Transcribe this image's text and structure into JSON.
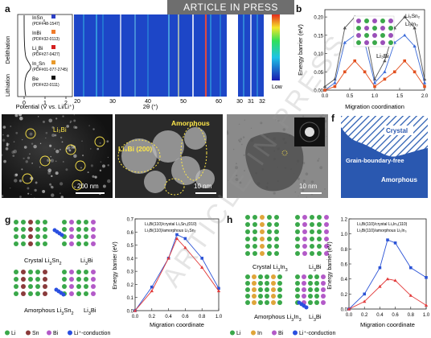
{
  "banner": "ARTICLE IN PRESS",
  "watermark": "ARTICLE IN PRESS",
  "panels": {
    "a": "a",
    "b": "b",
    "c": "c",
    "d": "d",
    "e": "e",
    "f": "f",
    "g": "g",
    "h": "h"
  },
  "panel_a": {
    "side_top": "Delithiation",
    "side_bottom": "Lithiation",
    "refs": [
      {
        "name": "InSn",
        "sub": "4",
        "pdf": "(PDF#48-1547)",
        "color": "#2c3fc4"
      },
      {
        "name": "InBi",
        "sub": "",
        "pdf": "(PDF#32-0113)",
        "color": "#f07b2a"
      },
      {
        "name": "Li",
        "sub": "3",
        "name2": "Bi",
        "pdf": "(PDF#27-0427)",
        "color": "#d42020"
      },
      {
        "name": "In",
        "sub": "3",
        "name2": "Sn",
        "pdf": "(PDF#01-077-2745)",
        "color": "#e89a2b"
      },
      {
        "name": "Be",
        "sub": "",
        "pdf": "(PDF#22-0111)",
        "color": "#111111"
      }
    ],
    "xlabel": "Potential (V vs. Li/Li⁺)",
    "xticks": [
      "0",
      "1",
      "2"
    ],
    "theta_label": "2θ (°)",
    "theta_ticks": [
      "20",
      "30",
      "40",
      "50",
      "60"
    ],
    "theta_ticks2": [
      "30",
      "31",
      "32"
    ],
    "colorbar_low": "Low"
  },
  "panel_b": {
    "ylabel": "Energy barrier (eV)",
    "xlabel": "Migration coordination",
    "legend1": "Li₃Sn₂",
    "legend2": "Li₃In₃",
    "inset_label": "Li₃Bi",
    "chart_data": {
      "type": "line",
      "x": [
        0,
        0.2,
        0.4,
        0.6,
        0.8,
        1.0,
        1.2,
        1.4,
        1.6,
        1.8,
        2.0
      ],
      "series": [
        {
          "name": "Li₃Sn₂",
          "values": [
            0.01,
            0.03,
            0.17,
            0.2,
            0.17,
            0.03,
            0.08,
            0.17,
            0.2,
            0.17,
            0.03
          ]
        },
        {
          "name": "Li₃In₃",
          "values": [
            0.0,
            0.02,
            0.13,
            0.15,
            0.13,
            0.02,
            0.05,
            0.13,
            0.15,
            0.12,
            0.02
          ]
        },
        {
          "name": "",
          "values": [
            0.0,
            0.01,
            0.05,
            0.08,
            0.05,
            0.01,
            0.03,
            0.05,
            0.08,
            0.05,
            0.01
          ]
        }
      ],
      "ylim": [
        0,
        0.22
      ],
      "yticks": [
        "0.00",
        "0.05",
        "0.10",
        "0.15",
        "0.20"
      ],
      "xticks": [
        "0.0",
        "0.5",
        "1.0",
        "1.5",
        "2.0"
      ]
    }
  },
  "panel_c": {
    "label": "Li₃Bi",
    "scale": "200 nm"
  },
  "panel_d": {
    "label1": "Amorphous",
    "label2": "Li₃Bi (200)",
    "scale": "10 nm"
  },
  "panel_e": {
    "scale": "10 nm"
  },
  "panel_f": {
    "crystal": "Crystal",
    "gbf": "Grain-boundary-free",
    "amorphous": "Amorphous"
  },
  "panel_g": {
    "crystal_label": "Crystal Li₃Sn₂",
    "li3bi1": "Li₃Bi",
    "amorph_label": "Amorphous Li₃Sn₂",
    "li3bi2": "Li₃Bi",
    "legend": [
      "Li",
      "Sn",
      "Bi",
      "Li⁺-conduction"
    ],
    "ylabel": "Energy barrier (eV)",
    "xlabel": "Migration coordinate",
    "legend1": "Li₃Bi(110)/crystal Li₃Sn₂(010)",
    "legend2": "Li₃Bi(110)/amorphous Li₃Sn₂",
    "chart_data": {
      "type": "line",
      "x": [
        0,
        0.2,
        0.4,
        0.5,
        0.6,
        0.8,
        1.0
      ],
      "series": [
        {
          "name": "Li₃Bi(110)/crystal Li₃Sn₂(010)",
          "values": [
            0.0,
            0.18,
            0.4,
            0.58,
            0.55,
            0.4,
            0.17
          ]
        },
        {
          "name": "Li₃Bi(110)/amorphous Li₃Sn₂",
          "values": [
            0.0,
            0.15,
            0.4,
            0.55,
            0.48,
            0.33,
            0.15
          ]
        }
      ],
      "ylim": [
        0,
        0.7
      ],
      "yticks": [
        "0.0",
        "0.1",
        "0.2",
        "0.3",
        "0.4",
        "0.5",
        "0.6",
        "0.7"
      ],
      "xticks": [
        "0.0",
        "0.2",
        "0.4",
        "0.6",
        "0.8",
        "1.0"
      ]
    }
  },
  "panel_h": {
    "crystal_label": "Crystal Li₃In₃",
    "li3bi1": "Li₃Bi",
    "amorph_label": "Amorphous Li₃In₃",
    "li3bi2": "Li₃Bi",
    "legend": [
      "Li",
      "In",
      "Bi",
      "Li⁺-conduction"
    ],
    "ylabel": "Energy barrier (eV)",
    "xlabel": "Migration coordinate",
    "legend1": "Li₃Bi(110)/crystal Li₃In₃(110)",
    "legend2": "Li₃Bi(110)/amorphous Li₃In₃",
    "chart_data": {
      "type": "line",
      "x": [
        0,
        0.2,
        0.4,
        0.5,
        0.6,
        0.8,
        1.0
      ],
      "series": [
        {
          "name": "Li₃Bi(110)/crystal Li₃In₃(110)",
          "values": [
            0.0,
            0.2,
            0.55,
            0.92,
            0.88,
            0.55,
            0.42
          ]
        },
        {
          "name": "Li₃Bi(110)/amorphous Li₃In₃",
          "values": [
            0.0,
            0.1,
            0.3,
            0.4,
            0.38,
            0.18,
            0.05
          ]
        }
      ],
      "ylim": [
        0,
        1.2
      ],
      "yticks": [
        "0.0",
        "0.2",
        "0.4",
        "0.6",
        "0.8",
        "1.0",
        "1.2"
      ],
      "xticks": [
        "0.0",
        "0.2",
        "0.4",
        "0.6",
        "0.8",
        "1.0"
      ]
    }
  }
}
